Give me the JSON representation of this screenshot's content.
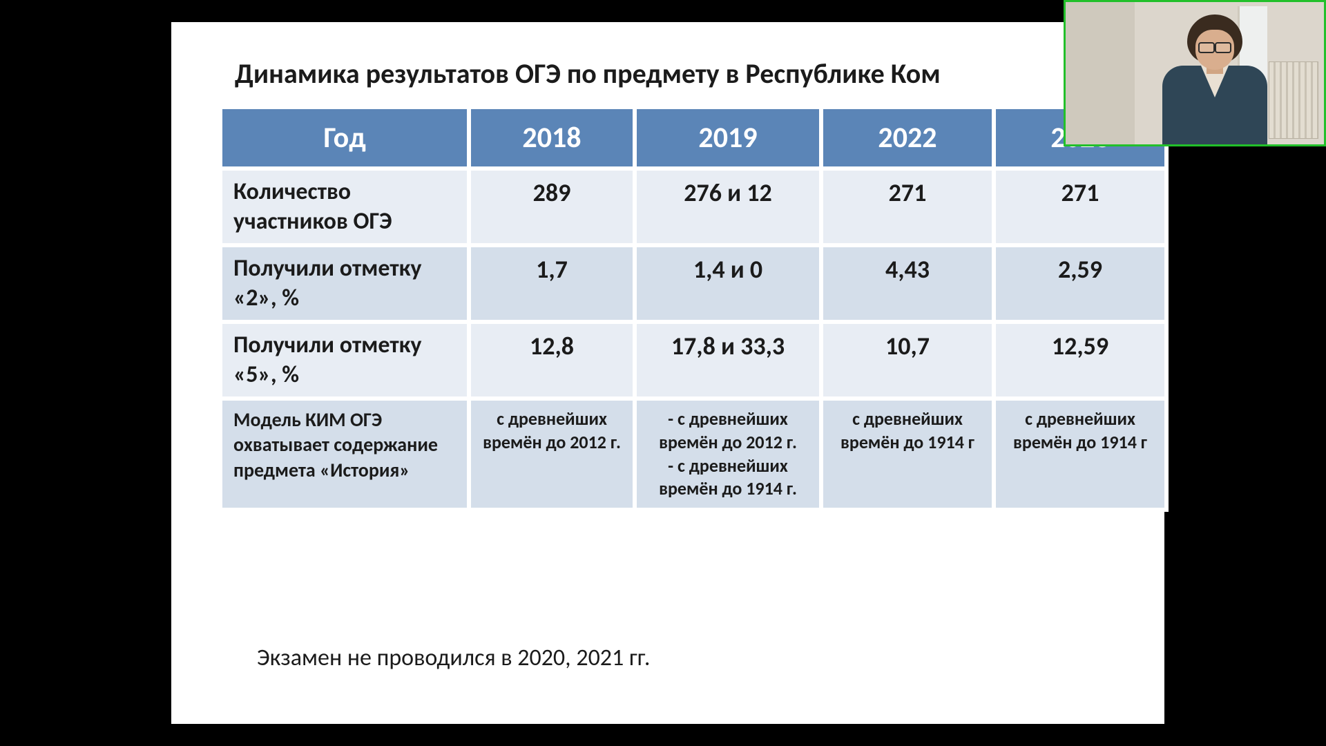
{
  "colors": {
    "page_bg": "#000000",
    "slide_bg": "#ffffff",
    "header_bg": "#5b85b7",
    "header_text": "#ffffff",
    "band_a": "#e8edf4",
    "band_b": "#d4deea",
    "text": "#1b1b1b",
    "webcam_border": "#22c02a"
  },
  "title": "Динамика результатов ОГЭ по предмету в Республике Ком",
  "table": {
    "header_row_label": "Год",
    "years": [
      "2018",
      "2019",
      "2022",
      "2023"
    ],
    "rows": [
      {
        "label": "Количество участников ОГЭ",
        "values": [
          "289",
          "276 и 12",
          "271",
          "271"
        ],
        "band": "a",
        "size": "big"
      },
      {
        "label": "Получили отметку «2», %",
        "values": [
          "1,7",
          "1,4 и 0",
          "4,43",
          "2,59"
        ],
        "band": "b",
        "size": "big"
      },
      {
        "label": "Получили отметку «5», %",
        "values": [
          "12,8",
          "17,8 и 33,3",
          "10,7",
          "12,59"
        ],
        "band": "a",
        "size": "big"
      },
      {
        "label": "Модель КИМ ОГЭ охватывает содержание предмета «История»",
        "values": [
          "с древнейших времён до 2012 г.",
          "- с древнейших времён до 2012 г.\n- с древнейших времён до 1914 г.",
          "с древнейших времён до 1914 г",
          "с древнейших времён до 1914 г"
        ],
        "band": "b",
        "size": "small"
      }
    ]
  },
  "footnote": "Экзамен не проводился в 2020, 2021 гг.",
  "webcam": {
    "description": "presenter-video-thumbnail"
  }
}
